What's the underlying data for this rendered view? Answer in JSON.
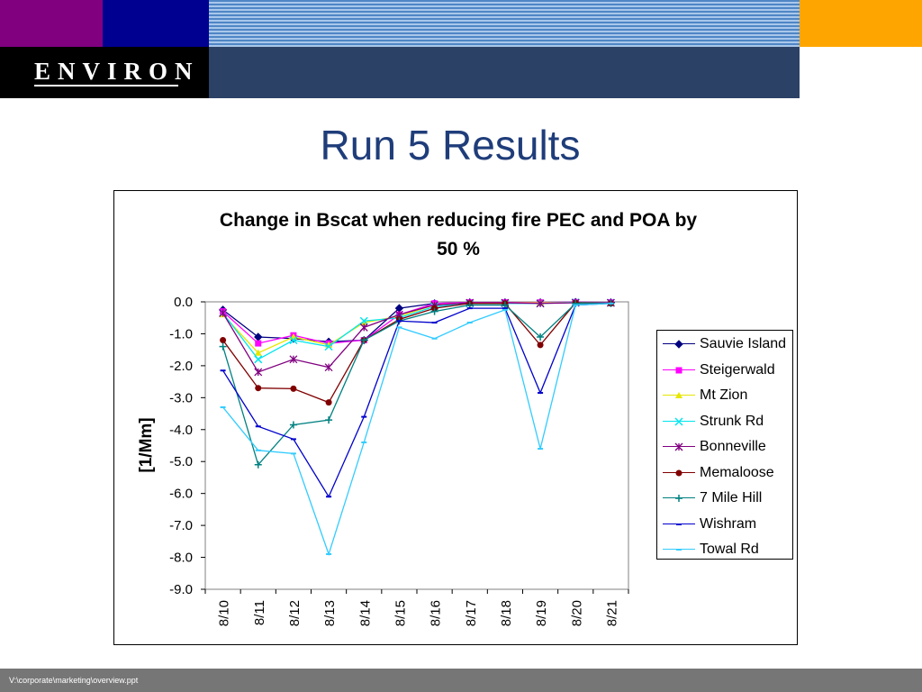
{
  "header": {
    "logo_text": "ENVIRON",
    "colors": {
      "purple": "#800080",
      "navy": "#000090",
      "orange": "#ffa500",
      "slate": "#2b4266"
    }
  },
  "slide": {
    "title": "Run 5 Results"
  },
  "footer": {
    "path": "V:\\corporate\\marketing\\overview.ppt"
  },
  "chart_data": {
    "type": "line",
    "title": "Change in Bscat when reducing fire PEC and POA by 50 %",
    "ylabel": "[1/Mm]",
    "xlabel": "",
    "ylim": [
      -9.0,
      0.0
    ],
    "yticks": [
      "0.0",
      "-1.0",
      "-2.0",
      "-3.0",
      "-4.0",
      "-5.0",
      "-6.0",
      "-7.0",
      "-8.0",
      "-9.0"
    ],
    "categories": [
      "8/10",
      "8/11",
      "8/12",
      "8/13",
      "8/14",
      "8/15",
      "8/16",
      "8/17",
      "8/18",
      "8/19",
      "8/20",
      "8/21"
    ],
    "grid": false,
    "legend_position": "right",
    "series": [
      {
        "name": "Sauvie Island",
        "color": "#000080",
        "marker": "diamond",
        "values": [
          -0.25,
          -1.1,
          -1.15,
          -1.25,
          -1.2,
          -0.2,
          -0.05,
          -0.02,
          -0.02,
          -0.02,
          -0.01,
          -0.02
        ]
      },
      {
        "name": "Steigerwald",
        "color": "#ff00ff",
        "marker": "square",
        "values": [
          -0.3,
          -1.3,
          -1.05,
          -1.3,
          -1.2,
          -0.4,
          -0.05,
          -0.02,
          -0.02,
          -0.02,
          -0.01,
          -0.02
        ]
      },
      {
        "name": "Mt Zion",
        "color": "#e6e600",
        "marker": "triangle",
        "values": [
          -0.4,
          -1.6,
          -1.1,
          -1.35,
          -0.65,
          -0.45,
          -0.1,
          -0.03,
          -0.03,
          -0.03,
          -0.02,
          -0.03
        ]
      },
      {
        "name": "Strunk Rd",
        "color": "#00e5ee",
        "marker": "x",
        "values": [
          -0.35,
          -1.8,
          -1.2,
          -1.4,
          -0.6,
          -0.5,
          -0.15,
          -0.05,
          -0.05,
          -0.05,
          -0.02,
          -0.03
        ]
      },
      {
        "name": "Bonneville",
        "color": "#800080",
        "marker": "asterisk",
        "values": [
          -0.35,
          -2.2,
          -1.8,
          -2.05,
          -0.8,
          -0.4,
          -0.1,
          -0.03,
          -0.03,
          -0.05,
          -0.03,
          -0.03
        ]
      },
      {
        "name": "Memaloose",
        "color": "#800000",
        "marker": "circle",
        "values": [
          -1.2,
          -2.7,
          -2.72,
          -3.15,
          -1.2,
          -0.55,
          -0.2,
          -0.05,
          -0.05,
          -1.35,
          -0.03,
          -0.05
        ]
      },
      {
        "name": "7 Mile Hill",
        "color": "#008080",
        "marker": "plus",
        "values": [
          -1.4,
          -5.1,
          -3.85,
          -3.7,
          -1.2,
          -0.6,
          -0.3,
          -0.1,
          -0.1,
          -1.1,
          -0.05,
          -0.05
        ]
      },
      {
        "name": "Wishram",
        "color": "#0000cc",
        "marker": "dash",
        "values": [
          -2.15,
          -3.9,
          -4.3,
          -6.1,
          -3.6,
          -0.6,
          -0.65,
          -0.2,
          -0.2,
          -2.85,
          -0.1,
          -0.05
        ]
      },
      {
        "name": "Towal Rd",
        "color": "#33ccff",
        "marker": "dash",
        "values": [
          -3.3,
          -4.65,
          -4.75,
          -7.9,
          -4.4,
          -0.8,
          -1.15,
          -0.65,
          -0.25,
          -4.6,
          -0.1,
          -0.05
        ]
      }
    ]
  }
}
